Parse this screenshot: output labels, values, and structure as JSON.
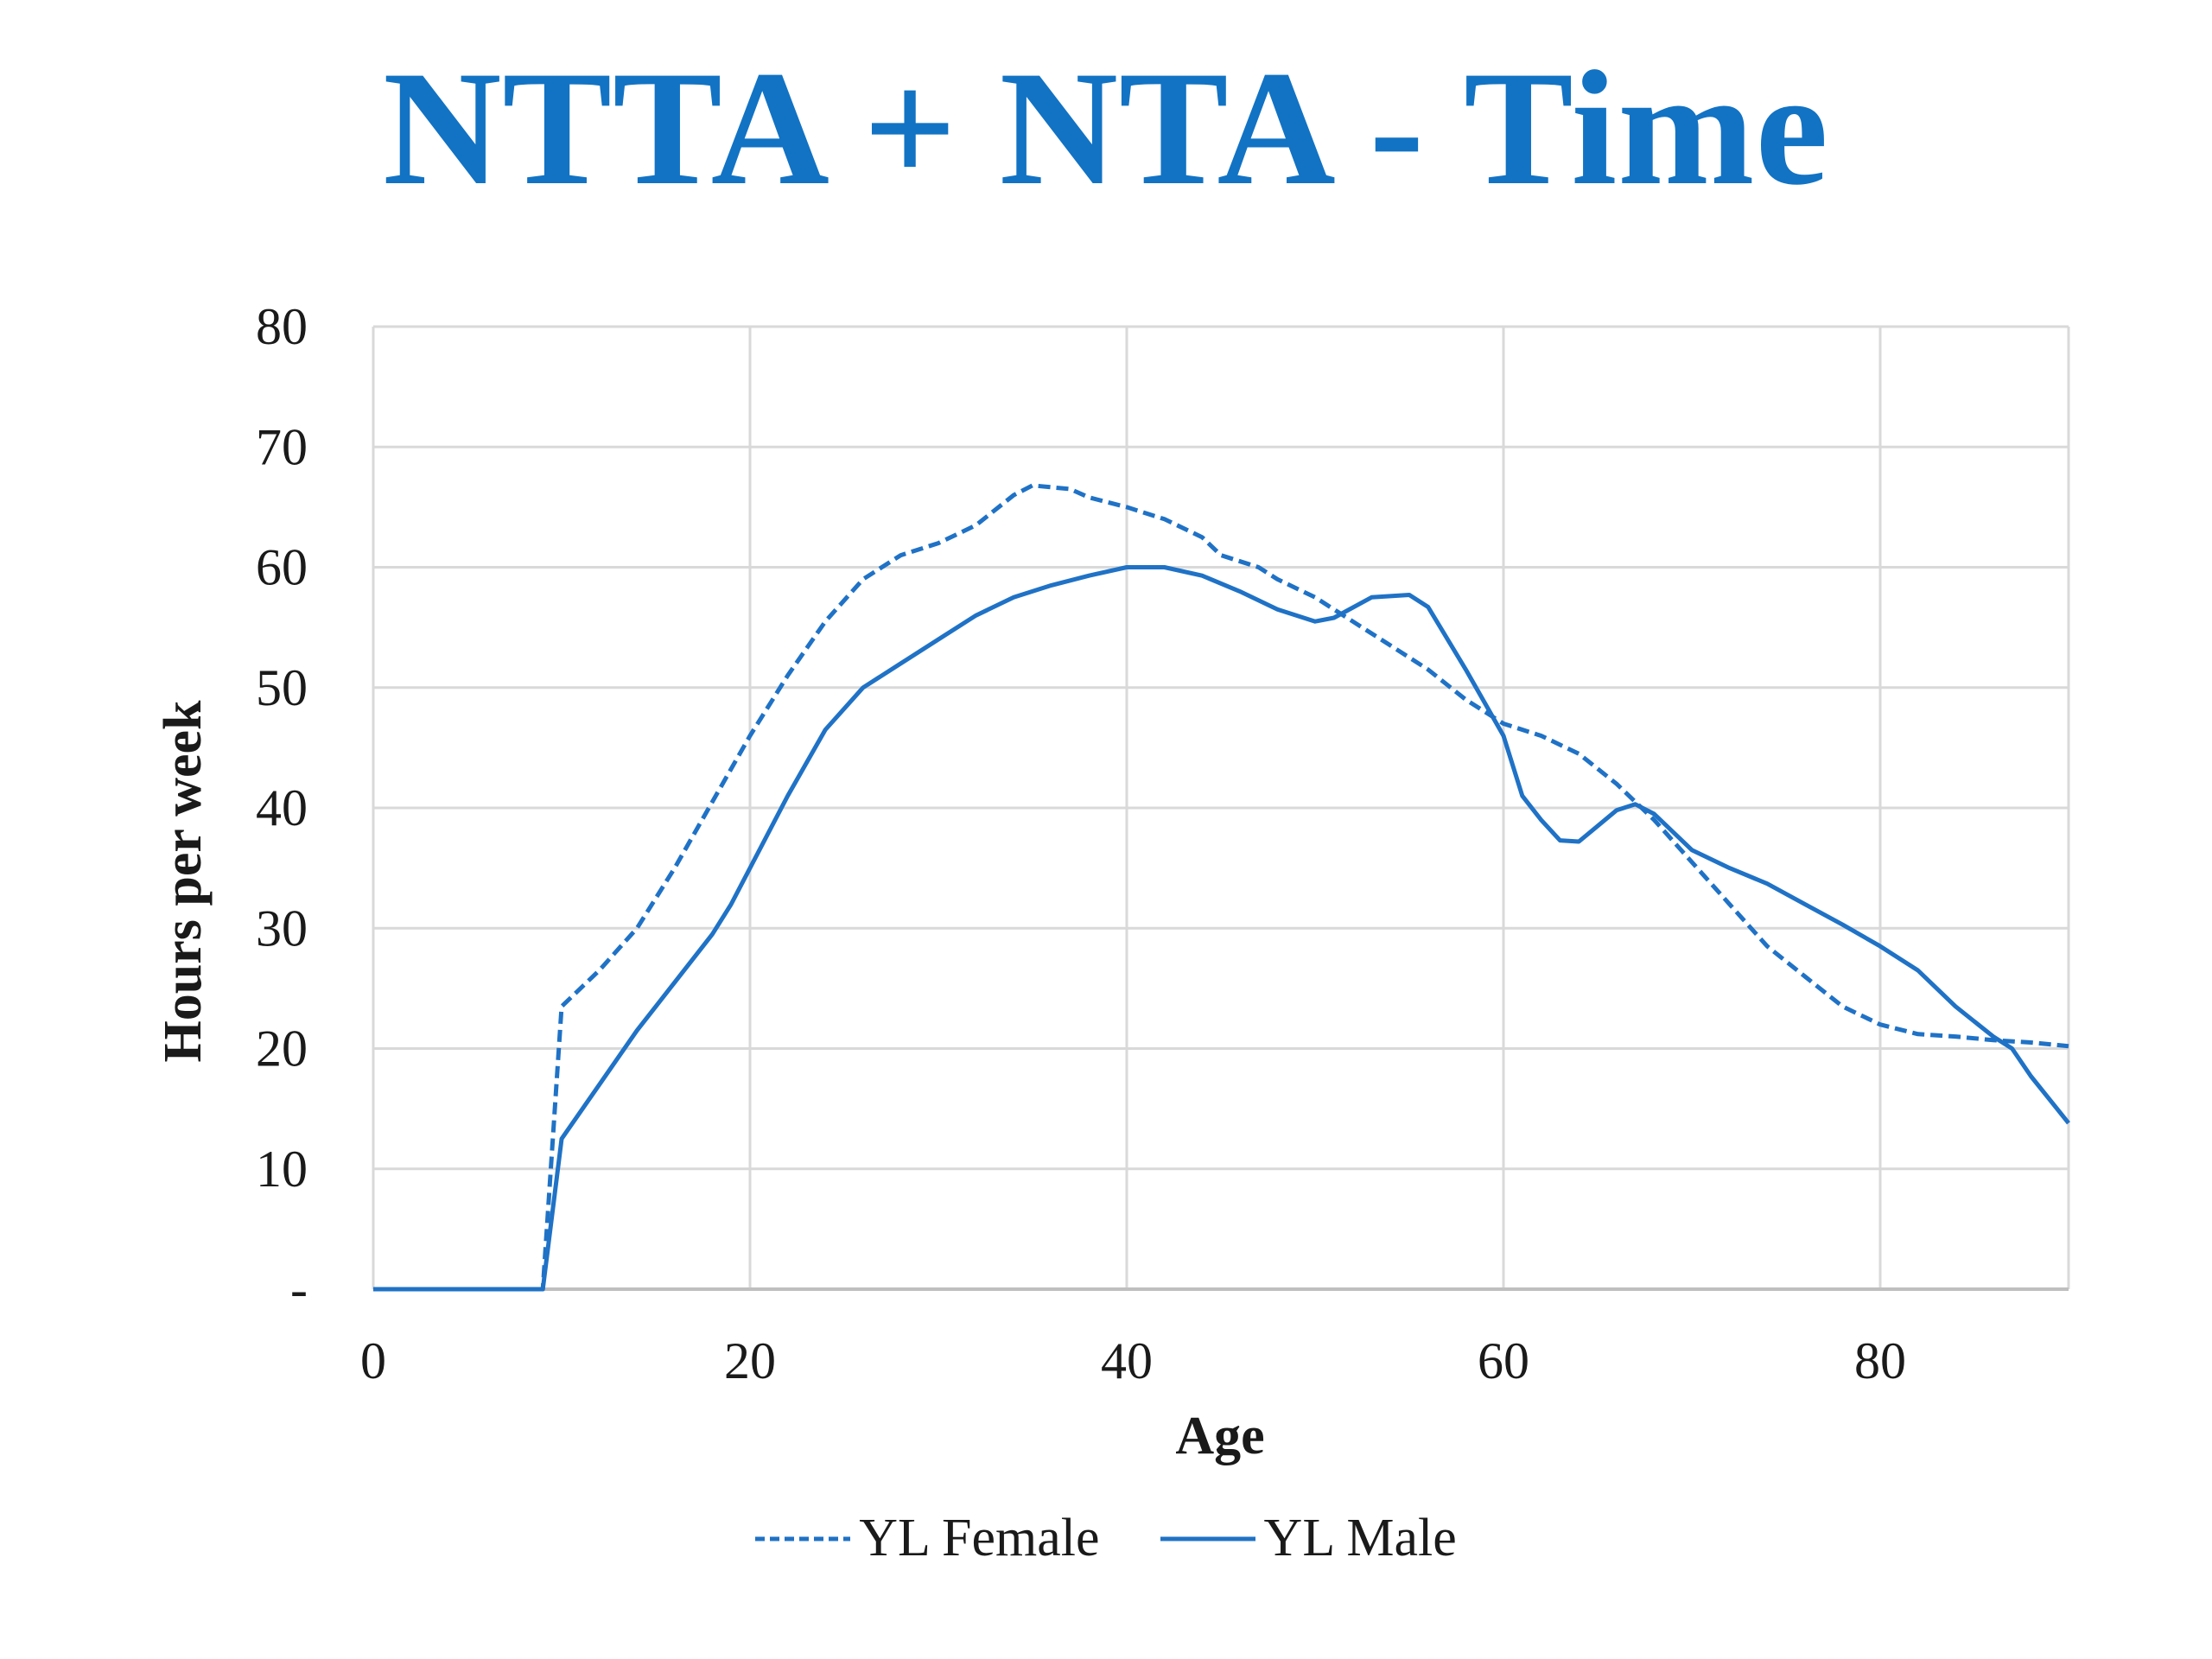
{
  "chart_data": {
    "type": "line",
    "title": "NTTA + NTA - Time",
    "xlabel": "Age",
    "ylabel": "Hours per week",
    "xlim": [
      0,
      90
    ],
    "ylim": [
      0,
      80
    ],
    "x_ticks": [
      "0",
      "20",
      "40",
      "60",
      "80"
    ],
    "y_ticks": [
      "-",
      "10",
      "20",
      "30",
      "40",
      "50",
      "60",
      "70",
      "80"
    ],
    "grid": true,
    "legend_position": "bottom",
    "series": [
      {
        "name": "YL Female",
        "style": "dashed",
        "color": "#1f72c6",
        "points": [
          [
            0,
            0
          ],
          [
            9,
            0
          ],
          [
            10,
            23.5
          ],
          [
            12,
            26.5
          ],
          [
            14,
            30
          ],
          [
            16,
            35
          ],
          [
            18,
            40.5
          ],
          [
            20,
            46
          ],
          [
            22,
            51
          ],
          [
            24,
            55.5
          ],
          [
            26,
            59
          ],
          [
            28,
            61
          ],
          [
            30,
            62
          ],
          [
            32,
            63.5
          ],
          [
            34,
            66
          ],
          [
            35,
            66.8
          ],
          [
            37,
            66.5
          ],
          [
            38,
            65.8
          ],
          [
            40,
            65
          ],
          [
            42,
            64
          ],
          [
            44,
            62.5
          ],
          [
            45,
            61
          ],
          [
            47,
            60
          ],
          [
            48,
            59
          ],
          [
            50,
            57.5
          ],
          [
            52,
            55.5
          ],
          [
            54,
            53.5
          ],
          [
            56,
            51.5
          ],
          [
            58,
            49
          ],
          [
            60,
            47
          ],
          [
            62,
            46
          ],
          [
            64,
            44.5
          ],
          [
            66,
            42
          ],
          [
            68,
            39
          ],
          [
            70,
            35.5
          ],
          [
            72,
            32
          ],
          [
            74,
            28.5
          ],
          [
            76,
            26
          ],
          [
            78,
            23.5
          ],
          [
            80,
            22
          ],
          [
            82,
            21.2
          ],
          [
            84,
            21
          ],
          [
            86,
            20.7
          ],
          [
            88,
            20.5
          ],
          [
            90,
            20.2
          ]
        ]
      },
      {
        "name": "YL Male",
        "style": "solid",
        "color": "#1f72c6",
        "points": [
          [
            0,
            0
          ],
          [
            9,
            0
          ],
          [
            10,
            12.5
          ],
          [
            12,
            17
          ],
          [
            14,
            21.5
          ],
          [
            16,
            25.5
          ],
          [
            18,
            29.5
          ],
          [
            19,
            32
          ],
          [
            20,
            35
          ],
          [
            22,
            41
          ],
          [
            24,
            46.5
          ],
          [
            26,
            50
          ],
          [
            28,
            52
          ],
          [
            30,
            54
          ],
          [
            32,
            56
          ],
          [
            34,
            57.5
          ],
          [
            36,
            58.5
          ],
          [
            38,
            59.3
          ],
          [
            40,
            60
          ],
          [
            42,
            60
          ],
          [
            44,
            59.3
          ],
          [
            46,
            58
          ],
          [
            48,
            56.5
          ],
          [
            50,
            55.5
          ],
          [
            51,
            55.8
          ],
          [
            53,
            57.5
          ],
          [
            55,
            57.7
          ],
          [
            56,
            56.7
          ],
          [
            58,
            51.5
          ],
          [
            60,
            46
          ],
          [
            61,
            41
          ],
          [
            62,
            39
          ],
          [
            63,
            37.3
          ],
          [
            64,
            37.2
          ],
          [
            65,
            38.5
          ],
          [
            66,
            39.8
          ],
          [
            67,
            40.3
          ],
          [
            68,
            39.5
          ],
          [
            70,
            36.5
          ],
          [
            72,
            35
          ],
          [
            74,
            33.7
          ],
          [
            76,
            32
          ],
          [
            78,
            30.3
          ],
          [
            80,
            28.5
          ],
          [
            82,
            26.5
          ],
          [
            84,
            23.5
          ],
          [
            86,
            21
          ],
          [
            87,
            20
          ],
          [
            88,
            17.7
          ],
          [
            90,
            13.8
          ]
        ]
      }
    ]
  }
}
